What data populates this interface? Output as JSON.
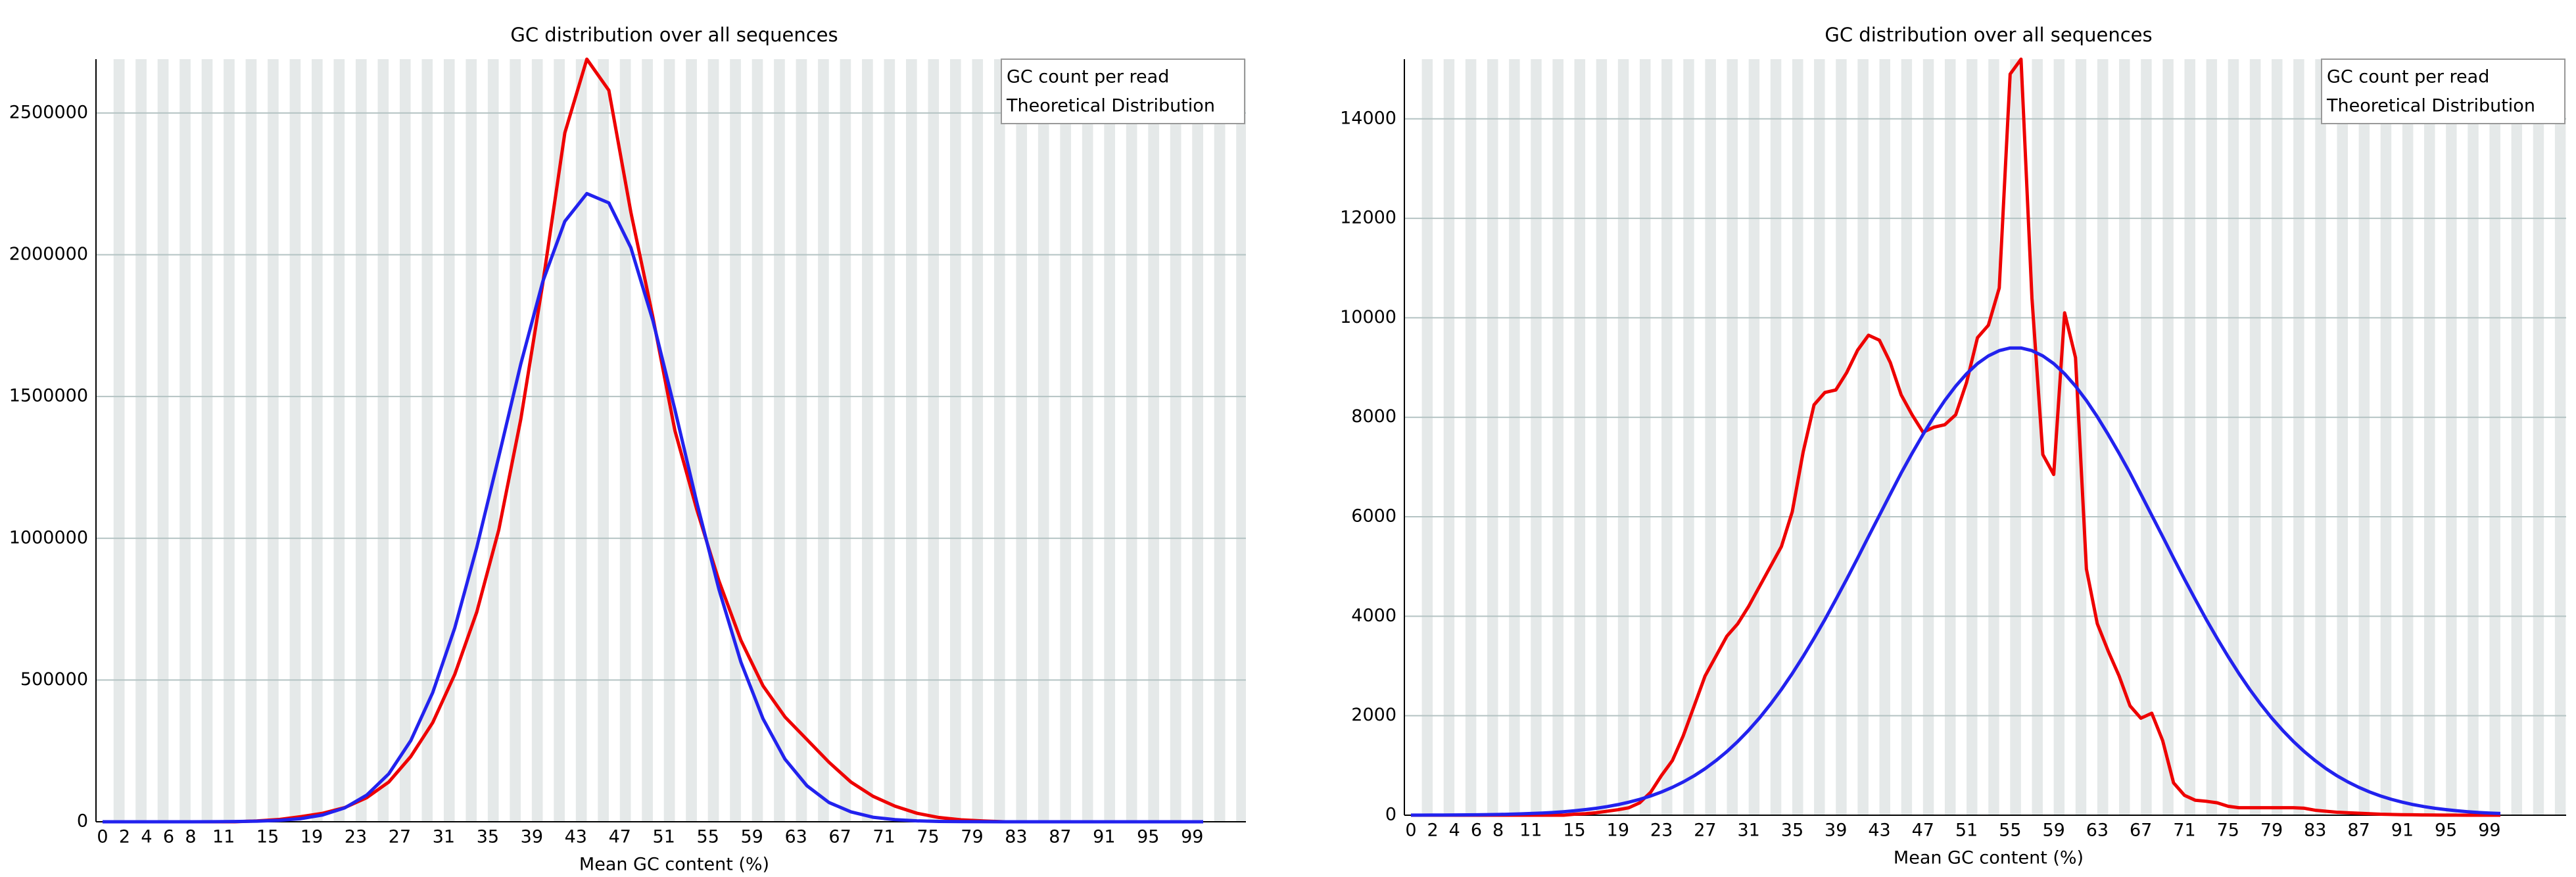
{
  "chart_data": [
    {
      "type": "line",
      "title": "GC distribution over all sequences",
      "x_label": "Mean GC content (%)",
      "x": [
        0,
        2,
        4,
        6,
        8,
        10,
        12,
        14,
        16,
        18,
        20,
        22,
        24,
        26,
        28,
        30,
        32,
        34,
        36,
        38,
        40,
        42,
        44,
        46,
        48,
        50,
        52,
        54,
        56,
        58,
        60,
        62,
        64,
        66,
        68,
        70,
        72,
        74,
        76,
        78,
        80,
        82,
        84,
        86,
        88,
        90,
        92,
        94,
        96,
        98,
        100
      ],
      "series": [
        {
          "name": "GC count per read",
          "color": "#ee0000",
          "values": [
            0,
            0,
            0,
            0,
            0,
            0,
            0,
            3000,
            8000,
            18000,
            30000,
            50000,
            85000,
            140000,
            230000,
            350000,
            520000,
            740000,
            1030000,
            1420000,
            1900000,
            2430000,
            2690000,
            2580000,
            2150000,
            1780000,
            1380000,
            1100000,
            850000,
            640000,
            480000,
            370000,
            290000,
            210000,
            140000,
            90000,
            55000,
            30000,
            15000,
            7000,
            3000,
            0,
            0,
            0,
            0,
            0,
            0,
            0,
            0,
            0,
            0
          ]
        },
        {
          "name": "Theoretical Distribution",
          "color": "#2222ee",
          "values": [
            0,
            0,
            0,
            0,
            0,
            300,
            800,
            2000,
            4900,
            11000,
            24000,
            49000,
            94000,
            169000,
            286000,
            456000,
            684000,
            968000,
            1288000,
            1615000,
            1906000,
            2118000,
            2216000,
            2183000,
            2025000,
            1768000,
            1454000,
            1125000,
            820000,
            563000,
            364000,
            221000,
            127000,
            68000,
            35000,
            16000,
            7500,
            3200,
            1300,
            500,
            200,
            0,
            0,
            0,
            0,
            0,
            0,
            0,
            0,
            0,
            0
          ]
        }
      ],
      "xlim": [
        0,
        100
      ],
      "xticks": [
        0,
        2,
        4,
        6,
        8,
        11,
        15,
        19,
        23,
        27,
        31,
        35,
        39,
        43,
        47,
        51,
        55,
        59,
        63,
        67,
        71,
        75,
        79,
        83,
        87,
        91,
        95,
        99
      ],
      "ylim": [
        0,
        2690000
      ],
      "yticks": [
        0,
        500000,
        1000000,
        1500000,
        2000000,
        2500000
      ],
      "grid": true,
      "legend": "upper right"
    },
    {
      "type": "line",
      "title": "GC distribution over all sequences",
      "x_label": "Mean GC content (%)",
      "x": [
        0,
        1,
        2,
        3,
        4,
        5,
        6,
        7,
        8,
        9,
        10,
        11,
        12,
        13,
        14,
        15,
        16,
        17,
        18,
        19,
        20,
        21,
        22,
        23,
        24,
        25,
        26,
        27,
        28,
        29,
        30,
        31,
        32,
        33,
        34,
        35,
        36,
        37,
        38,
        39,
        40,
        41,
        42,
        43,
        44,
        45,
        46,
        47,
        48,
        49,
        50,
        51,
        52,
        53,
        54,
        55,
        56,
        57,
        58,
        59,
        60,
        61,
        62,
        63,
        64,
        65,
        66,
        67,
        68,
        69,
        70,
        71,
        72,
        73,
        74,
        75,
        76,
        77,
        78,
        79,
        80,
        81,
        82,
        83,
        84,
        85,
        86,
        87,
        88,
        89,
        90,
        91,
        92,
        93,
        94,
        95,
        96,
        97,
        98,
        99,
        100
      ],
      "series": [
        {
          "name": "GC count per read",
          "color": "#ee0000",
          "values": [
            0,
            0,
            0,
            0,
            0,
            0,
            0,
            0,
            0,
            0,
            0,
            0,
            0,
            0,
            0,
            20,
            30,
            50,
            80,
            110,
            150,
            250,
            460,
            800,
            1100,
            1600,
            2200,
            2800,
            3200,
            3600,
            3850,
            4200,
            4600,
            5000,
            5400,
            6100,
            7300,
            8250,
            8500,
            8550,
            8900,
            9350,
            9650,
            9550,
            9100,
            8450,
            8050,
            7700,
            7800,
            7850,
            8050,
            8700,
            9600,
            9850,
            10600,
            14900,
            15200,
            10400,
            7250,
            6850,
            10100,
            9200,
            4950,
            3850,
            3300,
            2800,
            2200,
            1950,
            2050,
            1500,
            650,
            400,
            300,
            280,
            250,
            180,
            150,
            150,
            150,
            150,
            150,
            150,
            140,
            100,
            80,
            60,
            50,
            40,
            30,
            20,
            15,
            10,
            8,
            5,
            3,
            2,
            1,
            0,
            0,
            0,
            0
          ]
        },
        {
          "name": "Theoretical Distribution",
          "color": "#2222ee",
          "values": [
            1,
            2,
            3,
            4,
            5,
            7,
            9,
            12,
            15,
            20,
            26,
            34,
            43,
            55,
            70,
            89,
            112,
            139,
            173,
            213,
            262,
            319,
            387,
            467,
            561,
            669,
            793,
            935,
            1098,
            1279,
            1483,
            1709,
            1957,
            2231,
            2527,
            2848,
            3192,
            3556,
            3936,
            4337,
            4747,
            5170,
            5602,
            6029,
            6456,
            6880,
            7276,
            7653,
            8011,
            8337,
            8626,
            8875,
            9079,
            9234,
            9340,
            9393,
            9393,
            9340,
            9234,
            9079,
            8875,
            8626,
            8337,
            8011,
            7653,
            7276,
            6880,
            6456,
            6029,
            5602,
            5170,
            4747,
            4337,
            3936,
            3556,
            3192,
            2848,
            2527,
            2231,
            1957,
            1709,
            1483,
            1279,
            1098,
            935,
            793,
            669,
            561,
            467,
            387,
            319,
            262,
            213,
            173,
            139,
            112,
            89,
            70,
            55,
            43,
            34
          ]
        }
      ],
      "xlim": [
        0,
        100
      ],
      "xticks": [
        0,
        2,
        4,
        6,
        8,
        11,
        15,
        19,
        23,
        27,
        31,
        35,
        39,
        43,
        47,
        51,
        55,
        59,
        63,
        67,
        71,
        75,
        79,
        83,
        87,
        91,
        95,
        99
      ],
      "ylim": [
        0,
        15200
      ],
      "yticks": [
        0,
        2000,
        4000,
        6000,
        8000,
        10000,
        12000,
        14000
      ],
      "grid": true,
      "legend": "upper right"
    }
  ]
}
